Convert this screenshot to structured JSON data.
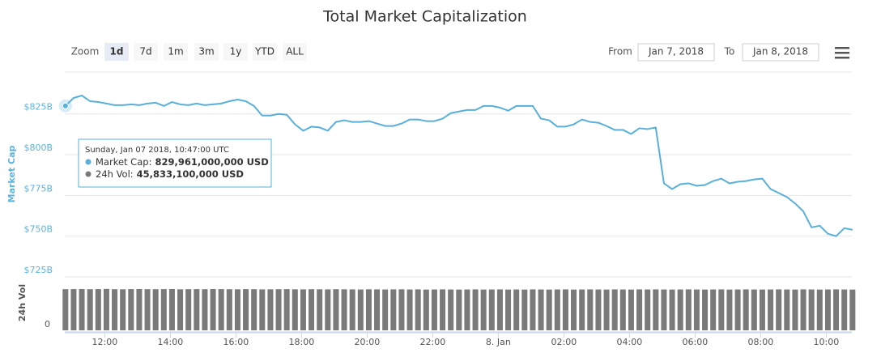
{
  "toolbar": {
    "zoom_label": "Zoom",
    "zoom_buttons": [
      "1d",
      "7d",
      "1m",
      "3m",
      "1y",
      "YTD",
      "ALL"
    ],
    "selected_button": 0,
    "from_label": "From",
    "from": "Jan 7, 2018",
    "to_label": "To",
    "to": "Jan 8, 2018"
  },
  "chart_data": [
    {
      "type": "line",
      "title": "Total Market Capitalization",
      "ylabel": "Market Cap",
      "x": [
        10.8,
        11.05,
        11.3,
        11.55,
        11.8,
        12.05,
        12.3,
        12.55,
        12.8,
        13.05,
        13.3,
        13.55,
        13.8,
        14.05,
        14.3,
        14.55,
        14.8,
        15.05,
        15.3,
        15.55,
        15.8,
        16.05,
        16.3,
        16.55,
        16.8,
        17.05,
        17.3,
        17.55,
        17.8,
        18.05,
        18.3,
        18.55,
        18.8,
        19.05,
        19.3,
        19.55,
        19.8,
        20.05,
        20.3,
        20.55,
        20.8,
        21.05,
        21.3,
        21.55,
        21.8,
        22.05,
        22.3,
        22.55,
        22.8,
        23.05,
        23.3,
        23.55,
        23.8,
        24.05,
        24.3,
        24.55,
        24.8,
        25.05,
        25.3,
        25.55,
        25.8,
        26.05,
        26.3,
        26.55,
        26.8,
        27.05,
        27.3,
        27.55,
        27.8,
        28.05,
        28.3,
        28.55,
        28.8,
        29.05,
        29.3,
        29.55,
        29.8,
        30.05,
        30.3,
        30.55,
        30.8,
        31.05,
        31.3,
        31.55,
        31.8,
        32.05,
        32.3,
        32.55,
        32.8,
        33.05,
        33.3,
        33.55,
        33.8,
        34.05,
        34.3,
        34.55,
        34.8
      ],
      "series": [
        {
          "name": "Market Cap",
          "color": "#58b0da",
          "values": [
            829.961,
            834.8,
            836.3,
            832.8,
            832.3,
            831.4,
            830.4,
            830.4,
            830.9,
            830.4,
            831.4,
            831.9,
            829.9,
            832.3,
            830.9,
            830.4,
            831.4,
            830.4,
            830.9,
            831.4,
            832.8,
            833.8,
            832.8,
            829.9,
            824.0,
            824.0,
            825.0,
            824.5,
            818.6,
            814.7,
            817.2,
            816.7,
            814.7,
            820.1,
            821.1,
            820.1,
            820.1,
            820.6,
            819.1,
            817.6,
            817.6,
            819.1,
            821.6,
            821.6,
            820.6,
            820.6,
            822.1,
            825.5,
            826.5,
            827.4,
            827.4,
            829.9,
            829.9,
            828.9,
            827.0,
            829.9,
            829.9,
            829.9,
            822.1,
            821.1,
            817.2,
            817.2,
            818.6,
            821.6,
            820.1,
            819.6,
            817.6,
            815.2,
            815.2,
            812.7,
            816.2,
            815.7,
            816.7,
            782.4,
            778.9,
            781.9,
            782.4,
            780.9,
            781.4,
            783.8,
            785.3,
            782.4,
            783.4,
            783.8,
            784.8,
            785.3,
            778.9,
            776.5,
            774.0,
            770.1,
            765.2,
            755.4,
            756.4,
            751.5,
            750.0,
            754.9,
            753.9
          ]
        }
      ],
      "xlim": [
        10.78,
        34.78
      ],
      "xticks": [
        {
          "value": 12,
          "label": "12:00"
        },
        {
          "value": 14,
          "label": "14:00"
        },
        {
          "value": 16,
          "label": "16:00"
        },
        {
          "value": 18,
          "label": "18:00"
        },
        {
          "value": 20,
          "label": "20:00"
        },
        {
          "value": 22,
          "label": "22:00"
        },
        {
          "value": 24,
          "label": "8. Jan"
        },
        {
          "value": 26,
          "label": "02:00"
        },
        {
          "value": 28,
          "label": "04:00"
        },
        {
          "value": 30,
          "label": "06:00"
        },
        {
          "value": 32,
          "label": "08:00"
        },
        {
          "value": 34,
          "label": "10:00"
        }
      ],
      "ylim": [
        725,
        850.7
      ],
      "yticks": [
        {
          "value": 725,
          "label": "$725B"
        },
        {
          "value": 750,
          "label": "$750B"
        },
        {
          "value": 775,
          "label": "$775B"
        },
        {
          "value": 800,
          "label": "$800B"
        },
        {
          "value": 825,
          "label": "$825B"
        }
      ],
      "grid": true,
      "tooltip": {
        "header": "Sunday, Jan 07 2018, 10:47:00 UTC",
        "cap_label": "Market Cap:",
        "cap_value": "829,961,000,000 USD",
        "vol_label": "24h Vol:",
        "vol_value": "45,833,100,000 USD"
      }
    },
    {
      "type": "bar",
      "ylabel": "24h Vol",
      "color": "#7a7a7a",
      "x": [
        10.8,
        11.05,
        11.3,
        11.55,
        11.8,
        12.05,
        12.3,
        12.55,
        12.8,
        13.05,
        13.3,
        13.55,
        13.8,
        14.05,
        14.3,
        14.55,
        14.8,
        15.05,
        15.3,
        15.55,
        15.8,
        16.05,
        16.3,
        16.55,
        16.8,
        17.05,
        17.3,
        17.55,
        17.8,
        18.05,
        18.3,
        18.55,
        18.8,
        19.05,
        19.3,
        19.55,
        19.8,
        20.05,
        20.3,
        20.55,
        20.8,
        21.05,
        21.3,
        21.55,
        21.8,
        22.05,
        22.3,
        22.55,
        22.8,
        23.05,
        23.3,
        23.55,
        23.8,
        24.05,
        24.3,
        24.55,
        24.8,
        25.05,
        25.3,
        25.55,
        25.8,
        26.05,
        26.3,
        26.55,
        26.8,
        27.05,
        27.3,
        27.55,
        27.8,
        28.05,
        28.3,
        28.55,
        28.8,
        29.05,
        29.3,
        29.55,
        29.8,
        30.05,
        30.3,
        30.55,
        30.8,
        31.05,
        31.3,
        31.55,
        31.8,
        32.05,
        32.3,
        32.55,
        32.8,
        33.05,
        33.3,
        33.55,
        33.8,
        34.05,
        34.3,
        34.55,
        34.8
      ],
      "values": [
        45.8331,
        45.9,
        46.0,
        45.8,
        45.9,
        46.1,
        45.8,
        45.7,
        45.9,
        46.0,
        45.8,
        45.8,
        45.9,
        46.0,
        45.7,
        45.8,
        45.9,
        45.8,
        46.0,
        45.9,
        45.8,
        45.7,
        45.9,
        45.8,
        45.6,
        45.7,
        45.8,
        45.9,
        45.7,
        45.6,
        45.8,
        45.7,
        45.6,
        45.8,
        45.7,
        45.6,
        45.5,
        45.7,
        45.6,
        45.5,
        45.6,
        45.7,
        45.5,
        45.6,
        45.4,
        45.5,
        45.6,
        45.5,
        45.4,
        45.5,
        45.6,
        45.4,
        45.5,
        45.6,
        45.4,
        45.5,
        45.4,
        45.6,
        45.5,
        45.4,
        45.5,
        45.6,
        45.4,
        45.5,
        45.6,
        45.5,
        45.4,
        45.6,
        45.5,
        45.4,
        45.6,
        45.5,
        45.6,
        45.5,
        45.4,
        45.5,
        45.6,
        45.5,
        45.4,
        45.5,
        45.6,
        45.4,
        45.5,
        45.6,
        45.5,
        45.4,
        45.5,
        45.6,
        45.5,
        45.4,
        45.6,
        45.5,
        45.4,
        45.5,
        45.6,
        45.5,
        45.4
      ],
      "ylim": [
        0,
        55
      ],
      "yticks": [
        0
      ]
    }
  ]
}
